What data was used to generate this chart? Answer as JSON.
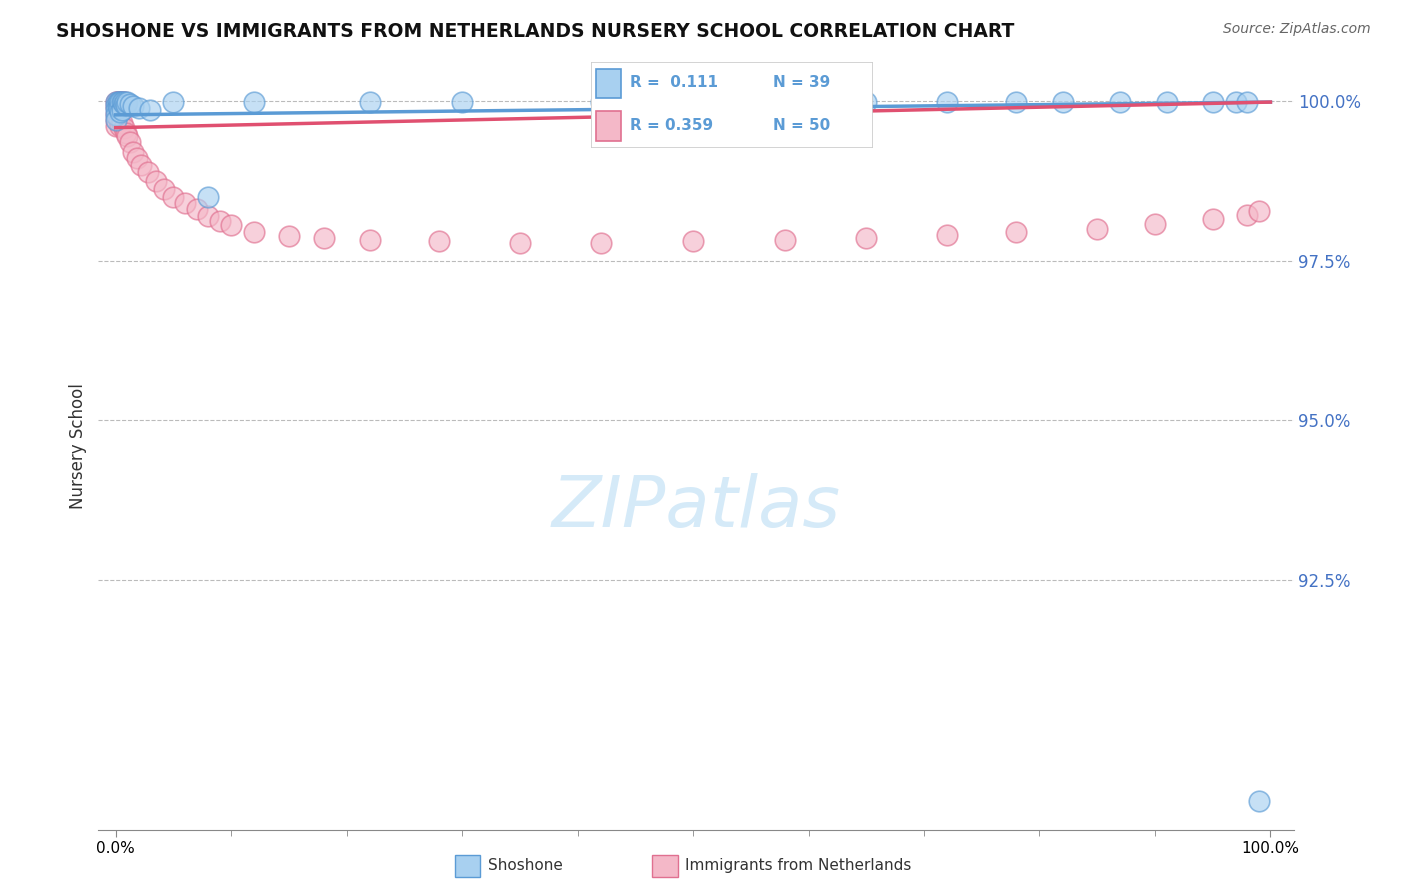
{
  "title": "SHOSHONE VS IMMIGRANTS FROM NETHERLANDS NURSERY SCHOOL CORRELATION CHART",
  "source_text": "Source: ZipAtlas.com",
  "ylabel": "Nursery School",
  "legend_label1": "Shoshone",
  "legend_label2": "Immigrants from Netherlands",
  "legend_r1": "R =  0.111",
  "legend_n1": "N = 39",
  "legend_r2": "R = 0.359",
  "legend_n2": "N = 50",
  "color_blue_fill": "#a8d0f0",
  "color_blue_edge": "#5b9bd5",
  "color_pink_fill": "#f4b8c8",
  "color_pink_edge": "#e07090",
  "color_blue_line": "#5b9bd5",
  "color_pink_line": "#e05070",
  "color_ytick": "#4472c4",
  "watermark_color": "#d5eaf8",
  "ylim_min": 0.886,
  "ylim_max": 1.006,
  "xlim_min": -0.015,
  "xlim_max": 1.02,
  "y_ticks": [
    0.925,
    0.95,
    0.975,
    1.0
  ],
  "y_tick_labels": [
    "92.5%",
    "95.0%",
    "97.5%",
    "100.0%"
  ],
  "shoshone_x": [
    0.0,
    0.0,
    0.0,
    0.0,
    0.0,
    0.002,
    0.002,
    0.003,
    0.003,
    0.004,
    0.004,
    0.005,
    0.005,
    0.006,
    0.007,
    0.008,
    0.009,
    0.01,
    0.012,
    0.015,
    0.02,
    0.03,
    0.05,
    0.08,
    0.12,
    0.22,
    0.3,
    0.42,
    0.55,
    0.65,
    0.72,
    0.78,
    0.82,
    0.87,
    0.91,
    0.95,
    0.97,
    0.98,
    0.99
  ],
  "shoshone_y": [
    0.9998,
    0.9992,
    0.9985,
    0.9978,
    0.997,
    0.9998,
    0.999,
    0.9998,
    0.9988,
    0.9998,
    0.9982,
    0.9998,
    0.9986,
    0.9998,
    0.9995,
    0.9998,
    0.9993,
    0.9998,
    0.9995,
    0.9992,
    0.9988,
    0.9985,
    0.9998,
    0.985,
    0.9998,
    0.9998,
    0.9998,
    0.9998,
    0.9998,
    0.9998,
    0.9998,
    0.9998,
    0.9998,
    0.9998,
    0.9998,
    0.9998,
    0.9998,
    0.9998,
    0.8905
  ],
  "netherlands_x": [
    0.0,
    0.0,
    0.0,
    0.0,
    0.0,
    0.001,
    0.001,
    0.002,
    0.002,
    0.003,
    0.003,
    0.004,
    0.004,
    0.005,
    0.005,
    0.006,
    0.007,
    0.008,
    0.009,
    0.01,
    0.012,
    0.015,
    0.018,
    0.022,
    0.028,
    0.035,
    0.042,
    0.05,
    0.06,
    0.07,
    0.08,
    0.09,
    0.1,
    0.12,
    0.15,
    0.18,
    0.22,
    0.28,
    0.35,
    0.42,
    0.5,
    0.58,
    0.65,
    0.72,
    0.78,
    0.85,
    0.9,
    0.95,
    0.98,
    0.99
  ],
  "netherlands_y": [
    0.9998,
    0.999,
    0.998,
    0.997,
    0.996,
    0.9998,
    0.9985,
    0.9998,
    0.9975,
    0.9998,
    0.9968,
    0.9998,
    0.996,
    0.9998,
    0.9965,
    0.9998,
    0.9958,
    0.9998,
    0.995,
    0.9945,
    0.9935,
    0.992,
    0.991,
    0.99,
    0.9888,
    0.9875,
    0.9862,
    0.985,
    0.984,
    0.983,
    0.982,
    0.9812,
    0.9805,
    0.9795,
    0.9788,
    0.9785,
    0.9782,
    0.978,
    0.9778,
    0.9778,
    0.978,
    0.9782,
    0.9785,
    0.979,
    0.9795,
    0.98,
    0.9808,
    0.9815,
    0.9822,
    0.9828
  ],
  "trendline_blue_x0": 0.0,
  "trendline_blue_y0": 0.9978,
  "trendline_blue_x1": 1.0,
  "trendline_blue_y1": 0.9998,
  "trendline_pink_x0": 0.0,
  "trendline_pink_y0": 0.9958,
  "trendline_pink_x1": 1.0,
  "trendline_pink_y1": 0.9998
}
